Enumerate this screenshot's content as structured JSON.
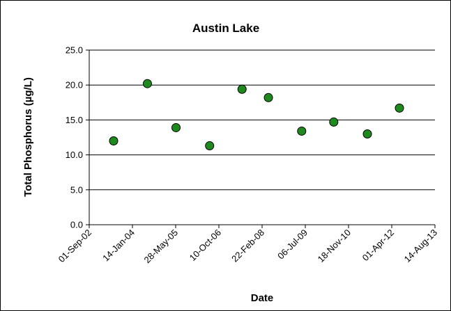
{
  "chart_data": {
    "type": "scatter",
    "title": "Austin Lake",
    "xlabel": "Date",
    "ylabel": "Total Phosphorus (µg/L)",
    "ylim": [
      0,
      25
    ],
    "yticks": [
      "0.0",
      "5.0",
      "10.0",
      "15.0",
      "20.0",
      "25.0"
    ],
    "xlim": [
      "2002-09-01",
      "2013-08-14"
    ],
    "xticks": [
      {
        "date": "2002-09-01",
        "label": "01-Sep-02"
      },
      {
        "date": "2004-01-14",
        "label": "14-Jan-04"
      },
      {
        "date": "2005-05-28",
        "label": "28-May-05"
      },
      {
        "date": "2006-10-10",
        "label": "10-Oct-06"
      },
      {
        "date": "2008-02-22",
        "label": "22-Feb-08"
      },
      {
        "date": "2009-07-06",
        "label": "06-Jul-09"
      },
      {
        "date": "2010-11-18",
        "label": "18-Nov-10"
      },
      {
        "date": "2012-04-01",
        "label": "01-Apr-12"
      },
      {
        "date": "2013-08-14",
        "label": "14-Aug-13"
      }
    ],
    "grid": {
      "horizontal": true,
      "vertical": false
    },
    "legend": "none",
    "marker_color": "#1e8a1e",
    "series": [
      {
        "points": [
          {
            "x": "2003-06-10",
            "y": 12.0
          },
          {
            "x": "2004-07-05",
            "y": 20.2
          },
          {
            "x": "2005-06-01",
            "y": 13.9
          },
          {
            "x": "2006-06-25",
            "y": 11.3
          },
          {
            "x": "2007-07-05",
            "y": 19.4
          },
          {
            "x": "2008-05-05",
            "y": 18.2
          },
          {
            "x": "2009-05-25",
            "y": 13.4
          },
          {
            "x": "2010-05-31",
            "y": 14.7
          },
          {
            "x": "2011-06-24",
            "y": 13.0
          },
          {
            "x": "2012-06-29",
            "y": 16.7
          }
        ]
      }
    ]
  }
}
